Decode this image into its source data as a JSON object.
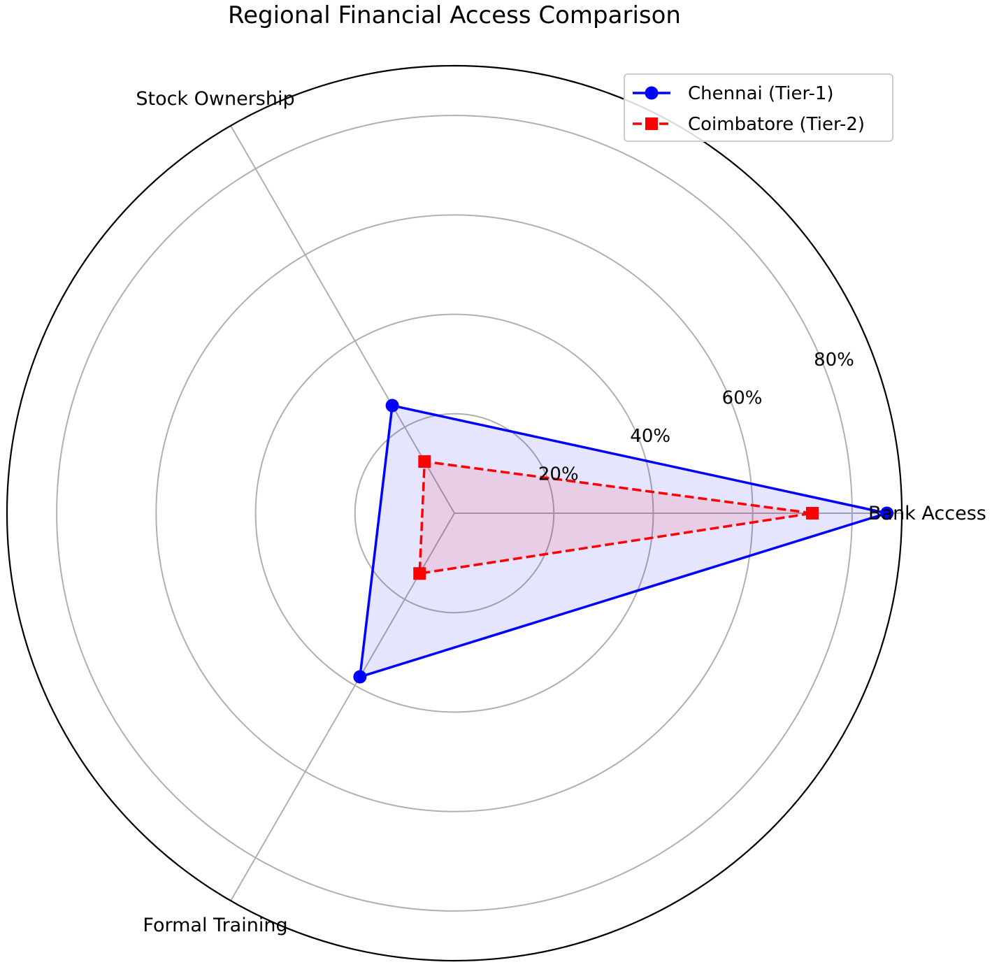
{
  "chart_data": {
    "type": "radar",
    "title": "Regional Financial Access Comparison",
    "categories": [
      "Bank Access",
      "Stock Ownership",
      "Formal Training"
    ],
    "category_angles_deg": [
      0,
      120,
      240
    ],
    "radial_ticks": [
      20,
      40,
      60,
      80
    ],
    "radial_tick_labels": [
      "20%",
      "40%",
      "60%",
      "80%"
    ],
    "rlim": [
      0,
      90
    ],
    "grid": true,
    "legend_position": "top-right",
    "series": [
      {
        "name": "Chennai (Tier-1)",
        "values": [
          87,
          25,
          38
        ],
        "color": "#0000ff",
        "fill_color": "#0000ff",
        "line_style": "solid",
        "marker": "circle"
      },
      {
        "name": "Coimbatore (Tier-2)",
        "values": [
          72,
          12,
          14
        ],
        "color": "#ff0000",
        "fill_color": "#ff0000",
        "line_style": "dashed",
        "marker": "square"
      }
    ]
  }
}
